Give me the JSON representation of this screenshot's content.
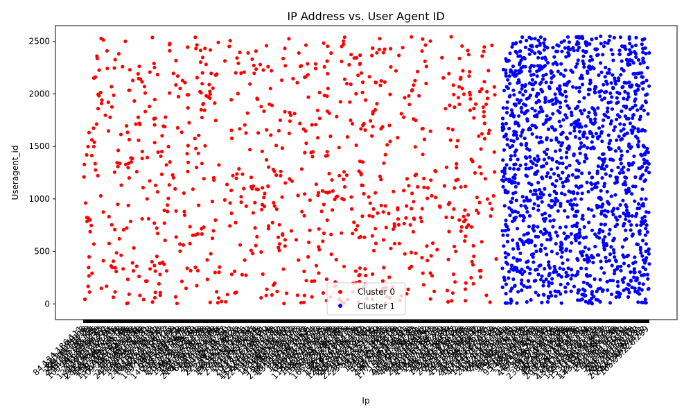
{
  "chart_data": {
    "type": "scatter",
    "title": "IP Address vs. User Agent ID",
    "xlabel": "Ip",
    "ylabel": "Useragent_id",
    "ylim": [
      -150,
      2650
    ],
    "y_ticks": [
      0,
      500,
      1000,
      1500,
      2000,
      2500
    ],
    "x_tick_labels": "dense, illegible overlapping IP labels",
    "grid": false,
    "legend_position": "lower center",
    "series": [
      {
        "name": "Cluster 0",
        "color": "#ff0000",
        "x_range_fraction": [
          0.0,
          0.73
        ],
        "point_count": 900,
        "y_range": [
          0,
          2550
        ]
      },
      {
        "name": "Cluster 1",
        "color": "#0000ff",
        "x_range_fraction": [
          0.74,
          1.0
        ],
        "point_count": 1500,
        "y_range": [
          0,
          2550
        ]
      }
    ]
  }
}
